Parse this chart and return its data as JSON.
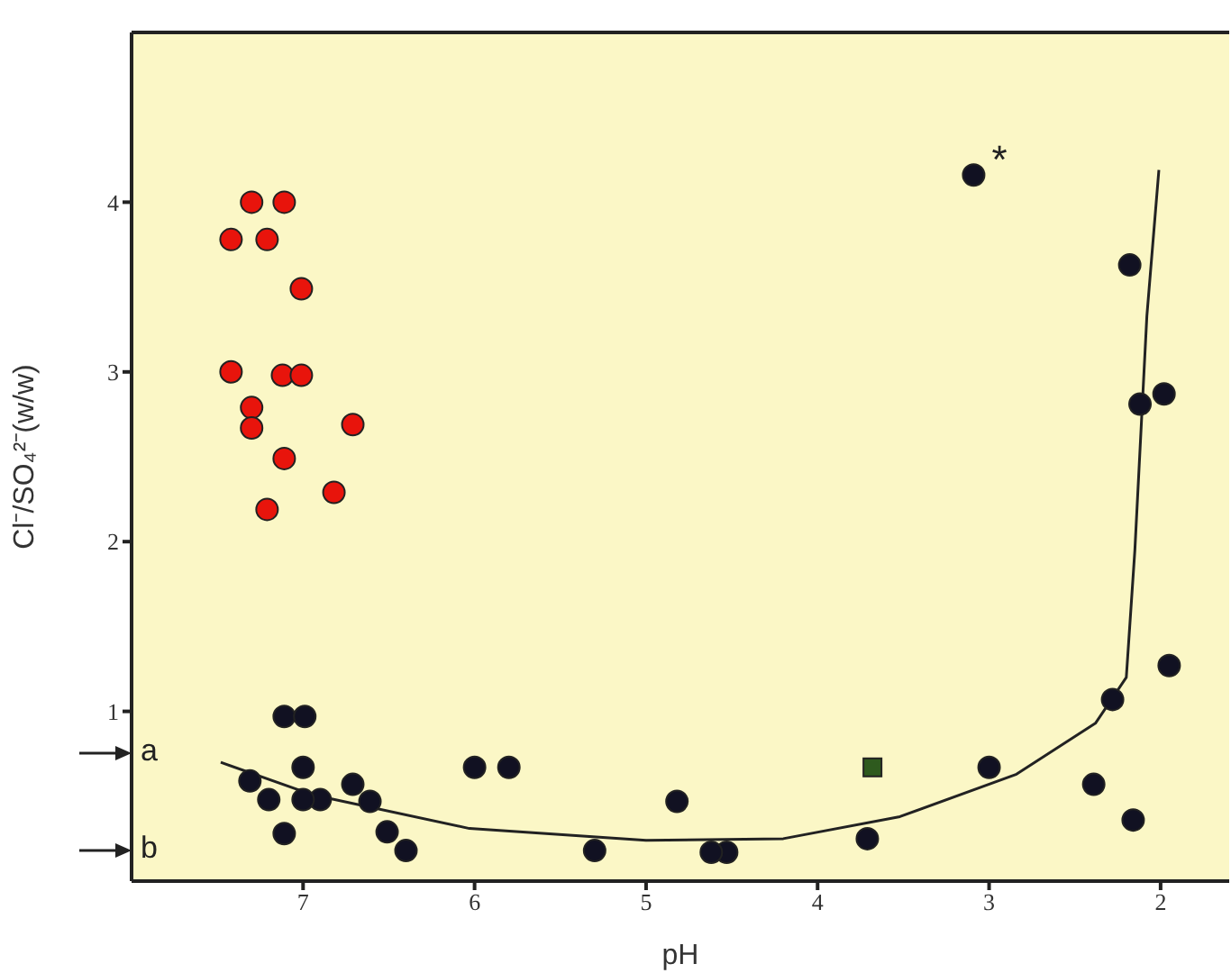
{
  "chart_data": {
    "type": "scatter",
    "xlabel": "pH",
    "ylabel": "Cl⁻/SO₄²⁻(w/w)",
    "xlim": [
      8,
      1.6
    ],
    "ylim": [
      0,
      5
    ],
    "xticks": [
      7,
      6,
      5,
      4,
      3,
      2
    ],
    "yticks": [
      1,
      2,
      3,
      4
    ],
    "grid": false,
    "legend": false,
    "series": [
      {
        "color": "#e8140c",
        "marker": "circle",
        "x": [
          7.3,
          7.11,
          7.42,
          7.21,
          7.01,
          7.42,
          7.12,
          7.01,
          7.3,
          7.3,
          6.71,
          7.11,
          6.82,
          7.21
        ],
        "values": [
          4.0,
          4.0,
          3.78,
          3.78,
          3.49,
          3.0,
          2.98,
          2.98,
          2.79,
          2.67,
          2.69,
          2.49,
          2.29,
          2.19
        ]
      },
      {
        "color": "#111122",
        "marker": "circle",
        "x": [
          3.09,
          2.18,
          2.12,
          1.98,
          1.95,
          2.28,
          2.39,
          2.16,
          3.0,
          3.71,
          4.53,
          4.62,
          4.82,
          5.3,
          5.8,
          6.0,
          6.4,
          6.51,
          6.61,
          6.71,
          6.9,
          7.0,
          7.0,
          7.11,
          6.99,
          7.11,
          7.2,
          7.31
        ],
        "values": [
          4.16,
          3.63,
          2.81,
          2.87,
          1.27,
          1.07,
          0.57,
          0.36,
          0.67,
          0.25,
          0.17,
          0.17,
          0.47,
          0.18,
          0.67,
          0.67,
          0.18,
          0.29,
          0.47,
          0.57,
          0.48,
          0.48,
          0.67,
          0.97,
          0.97,
          0.28,
          0.48,
          0.59
        ]
      },
      {
        "color": "#2e5a1e",
        "marker": "square",
        "x": [
          3.68
        ],
        "values": [
          0.67
        ]
      },
      {
        "type": "line",
        "color": "#222222",
        "marker": "none",
        "line_style": "solid",
        "x": [
          7.48,
          6.95,
          6.03,
          5.0,
          4.2,
          3.52,
          2.84,
          2.38,
          2.2,
          2.15,
          2.08,
          2.01
        ],
        "values": [
          0.7,
          0.51,
          0.31,
          0.24,
          0.25,
          0.38,
          0.63,
          0.93,
          1.2,
          1.95,
          3.33,
          4.19
        ]
      }
    ],
    "annotations": [
      {
        "text": "*",
        "x": 3.09,
        "y": 4.16
      },
      "a",
      "b"
    ]
  }
}
